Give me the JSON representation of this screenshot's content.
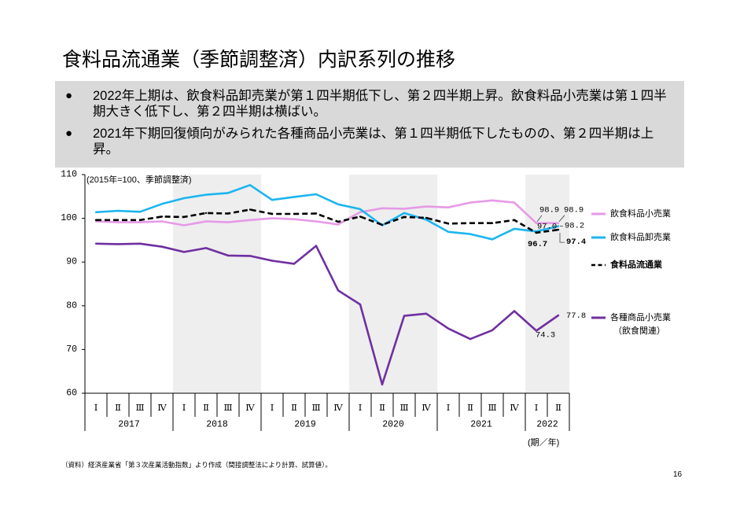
{
  "slide": {
    "title": "食料品流通業（季節調整済）内訳系列の推移",
    "bullet_marker": "●",
    "bullets": [
      "2022年上期は、飲食料品卸売業が第１四半期低下し、第２四半期上昇。飲食料品小売業は第１四半期大きく低下し、第２四半期は横ばい。",
      "2021年下期回復傾向がみられた各種商品小売業は、第１四半期低下したものの、第２四半期は上昇。"
    ],
    "footnote": "（資料）経済産業省「第３次産業活動指数」より作成（間接調整法により計算、試算値）。",
    "page_number": "16"
  },
  "chart_data": {
    "type": "line",
    "unit_note": "(2015年=100、季節調整済)",
    "xlabel": "(期／年)",
    "ylim": [
      60,
      110
    ],
    "yticks": [
      60,
      70,
      80,
      90,
      100,
      110
    ],
    "grid": false,
    "legend_position": "right",
    "years": [
      {
        "year": "2017",
        "quarters": [
          "Ⅰ",
          "Ⅱ",
          "Ⅲ",
          "Ⅳ"
        ],
        "shaded": false
      },
      {
        "year": "2018",
        "quarters": [
          "Ⅰ",
          "Ⅱ",
          "Ⅲ",
          "Ⅳ"
        ],
        "shaded": true
      },
      {
        "year": "2019",
        "quarters": [
          "Ⅰ",
          "Ⅱ",
          "Ⅲ",
          "Ⅳ"
        ],
        "shaded": false
      },
      {
        "year": "2020",
        "quarters": [
          "Ⅰ",
          "Ⅱ",
          "Ⅲ",
          "Ⅳ"
        ],
        "shaded": true
      },
      {
        "year": "2021",
        "quarters": [
          "Ⅰ",
          "Ⅱ",
          "Ⅲ",
          "Ⅳ"
        ],
        "shaded": false
      },
      {
        "year": "2022",
        "quarters": [
          "Ⅰ",
          "Ⅱ"
        ],
        "shaded": true
      }
    ],
    "series": [
      {
        "name": "飲食料品小売業",
        "color": "#e69ae6",
        "dashed": false,
        "bold": false,
        "values": [
          99.3,
          99.1,
          99.1,
          99.3,
          98.4,
          99.3,
          99.1,
          99.6,
          100.0,
          99.8,
          99.3,
          98.6,
          101.4,
          102.3,
          102.2,
          102.7,
          102.5,
          103.6,
          104.1,
          103.6,
          98.9,
          98.9
        ],
        "point_labels": [
          null,
          null,
          null,
          null,
          null,
          null,
          null,
          null,
          null,
          null,
          null,
          null,
          null,
          null,
          null,
          null,
          null,
          null,
          null,
          null,
          "98.9",
          "98.9"
        ]
      },
      {
        "name": "飲食料品卸売業",
        "color": "#1cb5ef",
        "dashed": false,
        "bold": false,
        "values": [
          101.4,
          101.7,
          101.5,
          103.3,
          104.6,
          105.4,
          105.8,
          107.6,
          104.2,
          104.9,
          105.5,
          103.2,
          102.1,
          98.4,
          101.2,
          99.7,
          96.9,
          96.4,
          95.2,
          97.6,
          97.0,
          98.2
        ],
        "point_labels": [
          null,
          null,
          null,
          null,
          null,
          null,
          null,
          null,
          null,
          null,
          null,
          null,
          null,
          null,
          null,
          null,
          null,
          null,
          null,
          null,
          "97.0",
          "98.2"
        ]
      },
      {
        "name": "食料品流通業",
        "color": "#000000",
        "dashed": true,
        "bold": true,
        "values": [
          99.6,
          99.6,
          99.6,
          100.4,
          100.3,
          101.2,
          101.1,
          102.0,
          101.0,
          101.0,
          101.1,
          99.2,
          100.4,
          98.5,
          100.3,
          100.1,
          98.8,
          98.9,
          98.9,
          99.6,
          96.7,
          97.4
        ],
        "point_labels": [
          null,
          null,
          null,
          null,
          null,
          null,
          null,
          null,
          null,
          null,
          null,
          null,
          null,
          null,
          null,
          null,
          null,
          null,
          null,
          null,
          "96.7",
          "97.4"
        ]
      },
      {
        "name": "各種商品小売業",
        "name_note": "（飲食関連）",
        "color": "#7030a0",
        "dashed": false,
        "bold": false,
        "values": [
          94.2,
          94.1,
          94.2,
          93.5,
          92.3,
          93.2,
          91.5,
          91.4,
          90.3,
          89.6,
          93.7,
          83.5,
          80.3,
          62.0,
          77.7,
          78.2,
          74.8,
          72.4,
          74.4,
          78.8,
          74.3,
          77.8
        ],
        "point_labels": [
          null,
          null,
          null,
          null,
          null,
          null,
          null,
          null,
          null,
          null,
          null,
          null,
          null,
          null,
          null,
          null,
          null,
          null,
          null,
          null,
          "74.3",
          "77.8"
        ]
      }
    ]
  }
}
